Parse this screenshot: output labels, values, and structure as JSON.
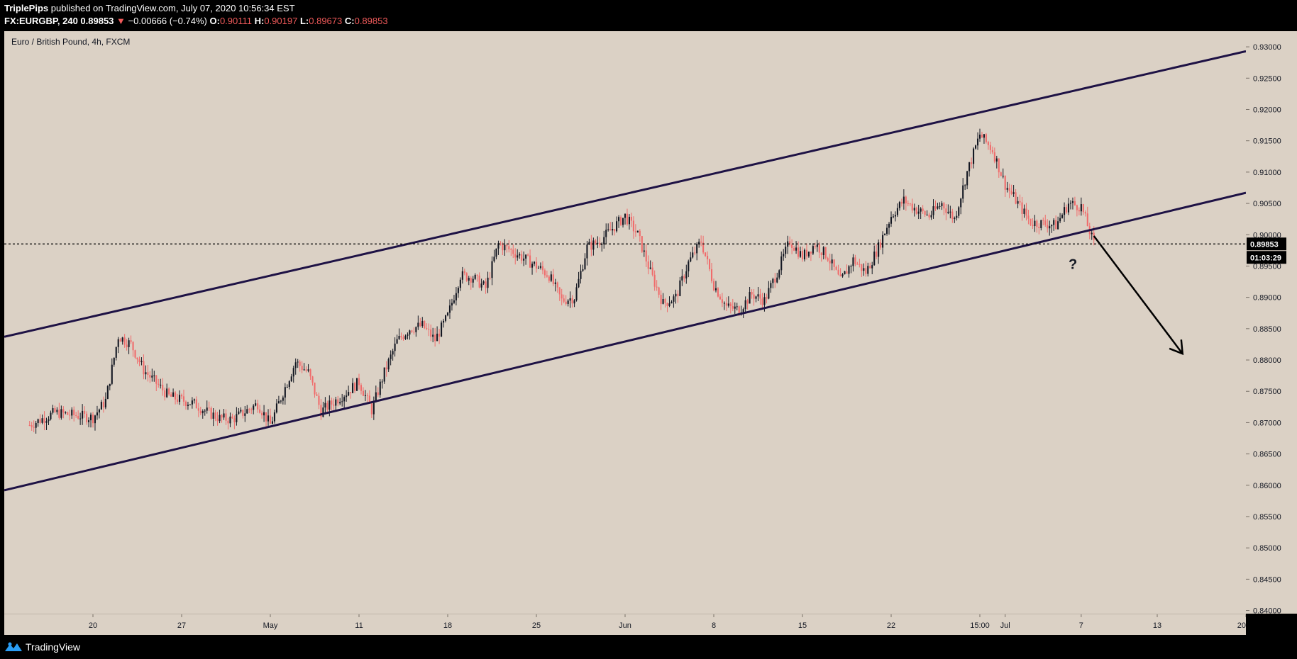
{
  "header": {
    "author": "TriplePips",
    "published": "published on TradingView.com, July 07, 2020 10:56:34 EST",
    "symbol": "FX:EURGBP, 240",
    "last": "0.89853",
    "change": "−0.00666 (−0.74%)",
    "o_label": "O:",
    "o_val": "0.90111",
    "h_label": "H:",
    "h_val": "0.90197",
    "l_label": "L:",
    "l_val": "0.89673",
    "c_label": "C:",
    "c_val": "0.89853"
  },
  "chart_title": "Euro / British Pound, 4h, FXCM",
  "footer": {
    "brand": "TradingView"
  },
  "colors": {
    "up": "#131722",
    "down": "#f06b6b",
    "background": "#dbd1c5",
    "channel": "#1e1245"
  },
  "chart_data": {
    "type": "candlestick",
    "timeframe": "4h",
    "yticks": [
      "0.93000",
      "0.92500",
      "0.92000",
      "0.91500",
      "0.91000",
      "0.90500",
      "0.90000",
      "0.89500",
      "0.89000",
      "0.88500",
      "0.88000",
      "0.87500",
      "0.87000",
      "0.86500",
      "0.86000",
      "0.85500",
      "0.85000",
      "0.84500",
      "0.84000"
    ],
    "ylim": [
      0.8395,
      0.9325
    ],
    "xticks": [
      "20",
      "27",
      "May",
      "11",
      "18",
      "25",
      "Jun",
      "8",
      "15",
      "22",
      "15:00",
      "Jul",
      "7",
      "13",
      "20"
    ],
    "xrange": [
      "2020-04-13",
      "2020-07-20"
    ],
    "current_price": "0.89853",
    "countdown": "01:03:29",
    "channel": {
      "upper": [
        [
          "2020-04-13",
          0.8837
        ],
        [
          "2020-07-20",
          0.9293
        ]
      ],
      "lower": [
        [
          "2020-04-13",
          0.8592
        ],
        [
          "2020-07-20",
          0.9067
        ]
      ]
    },
    "annotation_text": "?",
    "projection_arrow": [
      [
        "2020-07-08",
        0.8998
      ],
      [
        "2020-07-15",
        0.881
      ]
    ],
    "price_path": [
      [
        "2020-04-15",
        0.8696
      ],
      [
        "2020-04-17",
        0.8716
      ],
      [
        "2020-04-20",
        0.8708
      ],
      [
        "2020-04-21",
        0.8735
      ],
      [
        "2020-04-22",
        0.8838
      ],
      [
        "2020-04-23",
        0.8825
      ],
      [
        "2020-04-24",
        0.8784
      ],
      [
        "2020-04-26",
        0.8742
      ],
      [
        "2020-04-28",
        0.873
      ],
      [
        "2020-04-29",
        0.8717
      ],
      [
        "2020-04-30",
        0.8707
      ],
      [
        "2020-05-01",
        0.8705
      ],
      [
        "2020-05-03",
        0.873
      ],
      [
        "2020-05-04",
        0.8697
      ],
      [
        "2020-05-05",
        0.8748
      ],
      [
        "2020-05-06",
        0.8797
      ],
      [
        "2020-05-07",
        0.878
      ],
      [
        "2020-05-08",
        0.8718
      ],
      [
        "2020-05-10",
        0.8748
      ],
      [
        "2020-05-11",
        0.8765
      ],
      [
        "2020-05-12",
        0.872
      ],
      [
        "2020-05-13",
        0.878
      ],
      [
        "2020-05-14",
        0.883
      ],
      [
        "2020-05-15",
        0.885
      ],
      [
        "2020-05-16",
        0.8855
      ],
      [
        "2020-05-17",
        0.8832
      ],
      [
        "2020-05-18",
        0.887
      ],
      [
        "2020-05-19",
        0.8935
      ],
      [
        "2020-05-20",
        0.8932
      ],
      [
        "2020-05-21",
        0.8915
      ],
      [
        "2020-05-22",
        0.8985
      ],
      [
        "2020-05-23",
        0.8975
      ],
      [
        "2020-05-25",
        0.895
      ],
      [
        "2020-05-26",
        0.8935
      ],
      [
        "2020-05-27",
        0.8895
      ],
      [
        "2020-05-28",
        0.89
      ],
      [
        "2020-05-29",
        0.898
      ],
      [
        "2020-05-30",
        0.899
      ],
      [
        "2020-06-01",
        0.903
      ],
      [
        "2020-06-02",
        0.9
      ],
      [
        "2020-06-03",
        0.894
      ],
      [
        "2020-06-04",
        0.889
      ],
      [
        "2020-06-05",
        0.89
      ],
      [
        "2020-06-06",
        0.8955
      ],
      [
        "2020-06-07",
        0.899
      ],
      [
        "2020-06-08",
        0.892
      ],
      [
        "2020-06-09",
        0.8885
      ],
      [
        "2020-06-10",
        0.888
      ],
      [
        "2020-06-11",
        0.8905
      ],
      [
        "2020-06-12",
        0.8895
      ],
      [
        "2020-06-13",
        0.894
      ],
      [
        "2020-06-14",
        0.899
      ],
      [
        "2020-06-15",
        0.8965
      ],
      [
        "2020-06-16",
        0.8985
      ],
      [
        "2020-06-17",
        0.8965
      ],
      [
        "2020-06-18",
        0.8925
      ],
      [
        "2020-06-19",
        0.896
      ],
      [
        "2020-06-20",
        0.894
      ],
      [
        "2020-06-21",
        0.898
      ],
      [
        "2020-06-22",
        0.903
      ],
      [
        "2020-06-23",
        0.9055
      ],
      [
        "2020-06-24",
        0.904
      ],
      [
        "2020-06-25",
        0.903
      ],
      [
        "2020-06-26",
        0.905
      ],
      [
        "2020-06-27",
        0.9025
      ],
      [
        "2020-06-28",
        0.91
      ],
      [
        "2020-06-29",
        0.916
      ],
      [
        "2020-06-30",
        0.9135
      ],
      [
        "2020-07-01",
        0.908
      ],
      [
        "2020-07-02",
        0.905
      ],
      [
        "2020-07-03",
        0.902
      ],
      [
        "2020-07-04",
        0.9018
      ],
      [
        "2020-07-05",
        0.9015
      ],
      [
        "2020-07-06",
        0.905
      ],
      [
        "2020-07-07",
        0.9045
      ],
      [
        "2020-07-08",
        0.8985
      ]
    ]
  }
}
